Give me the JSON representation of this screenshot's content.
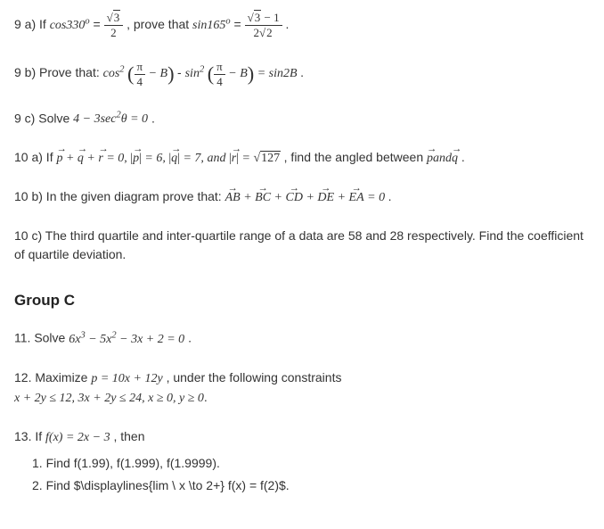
{
  "p9a": {
    "prefix": "9 a) If ",
    "expr1_l": "cos330",
    "expr1_deg": "o",
    "equals": " = ",
    "frac1_num": "√3",
    "frac1_den": "2",
    "mid": ", prove that ",
    "expr2_l": "sin165",
    "expr2_deg": "o",
    "frac2_num_a": "√3",
    "frac2_num_b": " − 1",
    "frac2_den": "2√2",
    "end": "."
  },
  "p9b": {
    "prefix": "9 b) Prove that: ",
    "t1": "cos",
    "sup1": "2",
    "inside1a": "π",
    "inside1b": "4",
    "inside1c": " − B",
    "minus": " - ",
    "t2": "sin",
    "sup2": "2",
    "rhs": " = sin2B",
    "end": "."
  },
  "p9c": {
    "prefix": "9 c) Solve ",
    "expr": "4 − 3sec",
    "sup": "2",
    "theta": "θ = 0",
    "end": "."
  },
  "p10a": {
    "prefix": "10 a) If ",
    "v1": "p",
    "v2": "q",
    "v3": "r",
    "plus": " + ",
    "eq0": " = 0",
    "comma": ", ",
    "abs1": "|",
    "pval": " = 6,",
    "qval": " = 7,",
    "and": " and",
    "rval": " = ",
    "sqrt127": "127",
    "mid": ", find the angled between ",
    "andword": "and",
    "end": "."
  },
  "p10b": {
    "prefix": "10 b) In the given diagram prove that: ",
    "AB": "AB",
    "BC": "BC",
    "CD": "CD",
    "DE": "DE",
    "EA": "EA",
    "plus": " + ",
    "eq": " = 0",
    "end": "."
  },
  "p10c": {
    "text": "10 c) The third quartile and inter-quartile range of a data are 58 and 28 respectively. Find the coefficient of quartile deviation."
  },
  "groupC": "Group C",
  "p11": {
    "prefix": "11. Solve ",
    "expr": "6x",
    "s3": "3",
    "t2": " − 5x",
    "s2": "2",
    "t3": " − 3x + 2 = 0",
    "end": "."
  },
  "p12": {
    "l1_pre": "12. Maximize ",
    "l1_expr": "p = 10x + 12y",
    "l1_suf": ", under the following constraints",
    "l2": "x + 2y ≤ 12, 3x + 2y ≤ 24, x ≥ 0, y ≥ 0",
    "end": "."
  },
  "p13": {
    "prefix": "13. If ",
    "expr": "f(x) = 2x − 3",
    "suffix": ", then",
    "s1": "1. Find f(1.99), f(1.999), f(1.9999).",
    "s2": "2. Find $\\displaylines{lim \\ x \\to 2+} f(x) = f(2)$."
  }
}
